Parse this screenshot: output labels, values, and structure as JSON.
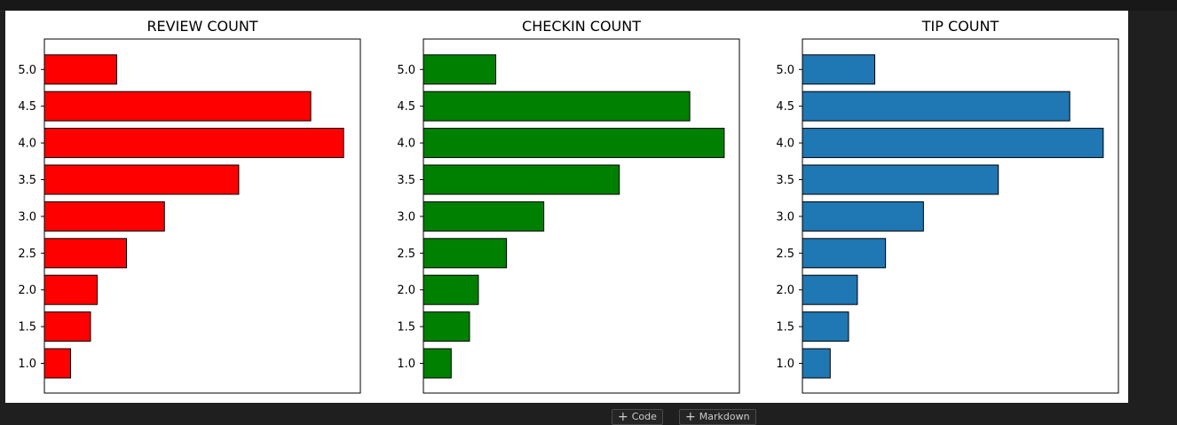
{
  "chart_data": [
    {
      "type": "bar",
      "orientation": "horizontal",
      "title": "REVIEW COUNT",
      "categories": [
        "1.0",
        "1.5",
        "2.0",
        "2.5",
        "3.0",
        "3.5",
        "4.0",
        "4.5",
        "5.0"
      ],
      "values": [
        0.083,
        0.146,
        0.167,
        0.26,
        0.38,
        0.615,
        0.947,
        0.843,
        0.229
      ],
      "color": "#ff0000",
      "xlim": [
        0,
        1
      ],
      "show_x_ticks": false,
      "grid": false
    },
    {
      "type": "bar",
      "orientation": "horizontal",
      "title": "CHECKIN COUNT",
      "categories": [
        "1.0",
        "1.5",
        "2.0",
        "2.5",
        "3.0",
        "3.5",
        "4.0",
        "4.5",
        "5.0"
      ],
      "values": [
        0.088,
        0.146,
        0.174,
        0.263,
        0.381,
        0.62,
        0.952,
        0.843,
        0.229
      ],
      "color": "#008000",
      "xlim": [
        0,
        1
      ],
      "show_x_ticks": false,
      "grid": false
    },
    {
      "type": "bar",
      "orientation": "horizontal",
      "title": "TIP COUNT",
      "categories": [
        "1.0",
        "1.5",
        "2.0",
        "2.5",
        "3.0",
        "3.5",
        "4.0",
        "4.5",
        "5.0"
      ],
      "values": [
        0.088,
        0.146,
        0.174,
        0.263,
        0.383,
        0.62,
        0.952,
        0.846,
        0.229
      ],
      "color": "#1f77b4",
      "xlim": [
        0,
        1
      ],
      "show_x_ticks": false,
      "grid": false
    }
  ],
  "toolbar": {
    "code_label": "Code",
    "markdown_label": "Markdown",
    "plus_icon": "plus-icon"
  },
  "colors": {
    "background": "#1f1f1f",
    "output_background": "#ffffff",
    "bar_edge": "#000000"
  }
}
